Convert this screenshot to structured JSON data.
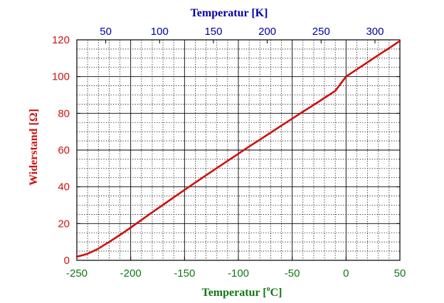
{
  "chart_data": {
    "type": "line",
    "xlabel_parts": [
      "Temperatur [",
      "o",
      "C]"
    ],
    "x2label": "Temperatur [K]",
    "ylabel_parts": [
      "Widerstand [",
      "Ω",
      "]"
    ],
    "xlim": [
      -250,
      50
    ],
    "ylim": [
      0,
      120
    ],
    "x2lim": [
      23.15,
      323.15
    ],
    "x_ticks": [
      -250,
      -200,
      -150,
      -100,
      -50,
      0,
      50
    ],
    "x2_ticks": [
      50,
      100,
      150,
      200,
      250,
      300
    ],
    "y_ticks": [
      0,
      20,
      40,
      60,
      80,
      100,
      120
    ],
    "grid": true,
    "colors": {
      "line": "#cc1111",
      "left_axis": "#cc1111",
      "bottom_axis": "#117711",
      "top_axis": "#0000aa",
      "grid": "#000000"
    },
    "series": [
      {
        "x": [
          -250,
          -245,
          -240,
          -235,
          -230,
          -225,
          -220,
          -210,
          -200,
          -190,
          -180,
          -170,
          -160,
          -150,
          -140,
          -130,
          -120,
          -110,
          -100,
          -90,
          -80,
          -70,
          -60,
          -50,
          -40,
          -30,
          -20,
          -10,
          0,
          10,
          20,
          30,
          40,
          50
        ],
        "y": [
          2.0,
          2.7,
          3.6,
          4.9,
          6.4,
          8.2,
          10.0,
          13.8,
          17.8,
          22.0,
          26.1,
          30.2,
          34.3,
          38.3,
          42.3,
          46.3,
          50.2,
          54.1,
          58.0,
          61.9,
          65.7,
          69.5,
          73.3,
          77.1,
          80.9,
          84.6,
          88.4,
          92.2,
          100.0,
          103.9,
          107.8,
          111.7,
          115.5,
          119.4
        ]
      }
    ]
  }
}
